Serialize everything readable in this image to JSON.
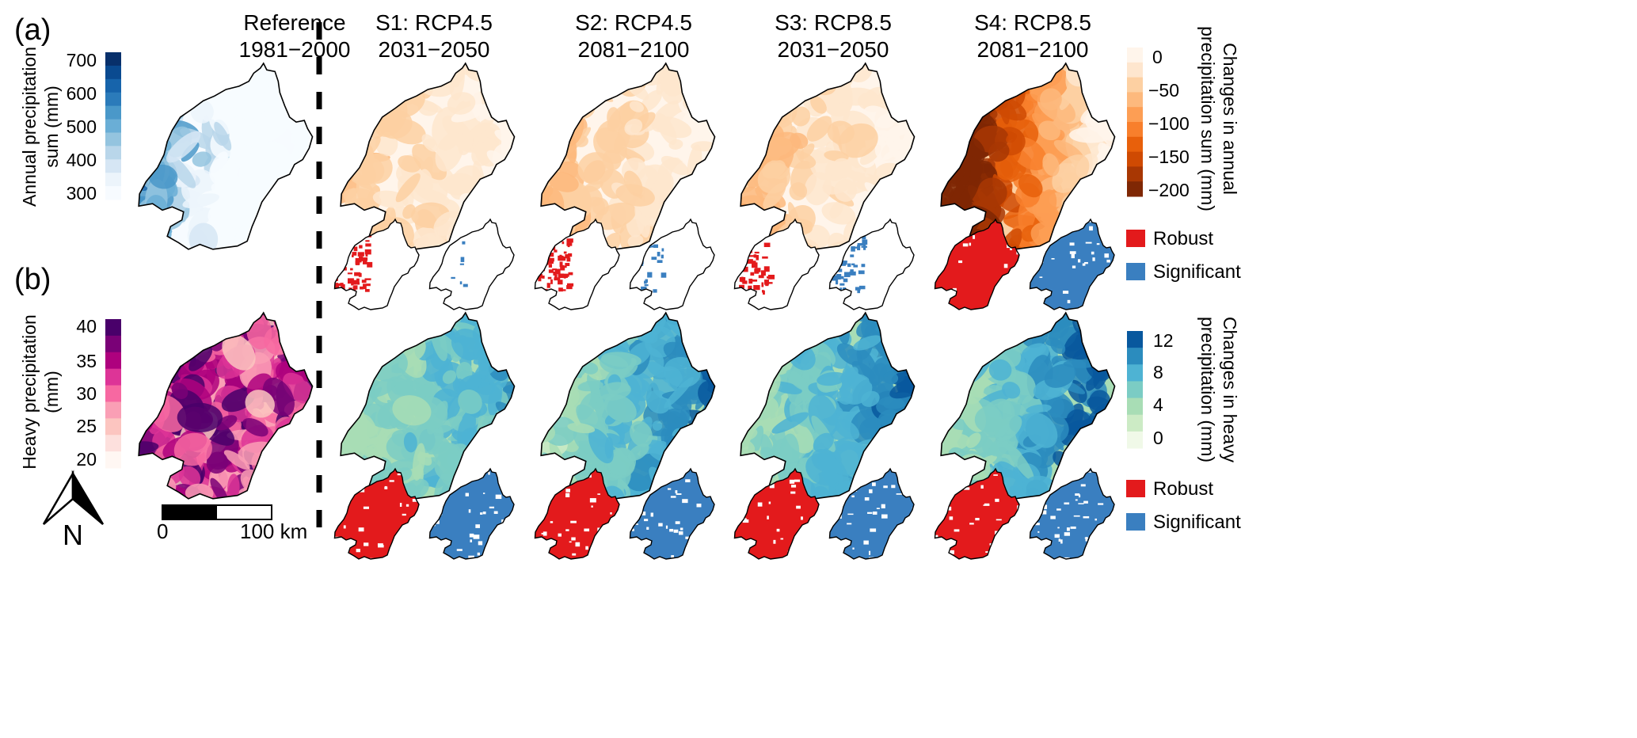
{
  "panels": {
    "a": "(a)",
    "b": "(b)"
  },
  "columns": [
    {
      "line1": "Reference",
      "line2": "1981−2000"
    },
    {
      "line1": "S1: RCP4.5",
      "line2": "2031−2050"
    },
    {
      "line1": "S2: RCP4.5",
      "line2": "2081−2100"
    },
    {
      "line1": "S3: RCP8.5",
      "line2": "2031−2050"
    },
    {
      "line1": "S4: RCP8.5",
      "line2": "2081−2100"
    }
  ],
  "row_a": {
    "ref_label_1": "Annual precipitation",
    "ref_label_2": "sum (mm)",
    "ref_ticks": [
      "700",
      "600",
      "500",
      "400",
      "300"
    ],
    "ref_colors": [
      "#08306b",
      "#0a4a90",
      "#1764ab",
      "#2b7bba",
      "#4a98c9",
      "#6aaed6",
      "#94c4df",
      "#b9d6ea",
      "#d6e6f4",
      "#ecf4fb",
      "#f7fbff"
    ],
    "change_label_1": "Changes in annual",
    "change_label_2": "precipitation sum (mm)",
    "change_ticks": [
      "0",
      "−50",
      "−100",
      "−150",
      "−200"
    ],
    "change_colors": [
      "#fff5eb",
      "#fee6ce",
      "#fdd0a2",
      "#fdb97d",
      "#fd9e54",
      "#f87f2c",
      "#e8600b",
      "#cf4a02",
      "#a83703",
      "#7f2704"
    ]
  },
  "row_b": {
    "ref_label_1": "Heavy precipitation",
    "ref_label_2": "(mm)",
    "ref_ticks": [
      "40",
      "35",
      "30",
      "25",
      "20"
    ],
    "ref_colors": [
      "#49006a",
      "#7a0177",
      "#ae017e",
      "#dd3497",
      "#f768a1",
      "#fa9fb5",
      "#fcc5c0",
      "#fde0dd",
      "#fff7f3"
    ],
    "change_label_1": "Changes in heavy",
    "change_label_2": "precipitation (mm)",
    "change_ticks": [
      "12",
      "8",
      "4",
      "0"
    ],
    "change_colors": [
      "#08589e",
      "#2b8cbe",
      "#4eb3d3",
      "#7bccc4",
      "#a8ddb5",
      "#ccebc5",
      "#f0f9e8"
    ]
  },
  "legend": {
    "robust": "Robust",
    "significant": "Significant",
    "robust_color": "#e31a1c",
    "significant_color": "#3a7fc0"
  },
  "scale_bar": {
    "left": "0",
    "right": "100 km"
  },
  "north_arrow": {
    "label": "N",
    "icon": "north-arrow-icon"
  }
}
